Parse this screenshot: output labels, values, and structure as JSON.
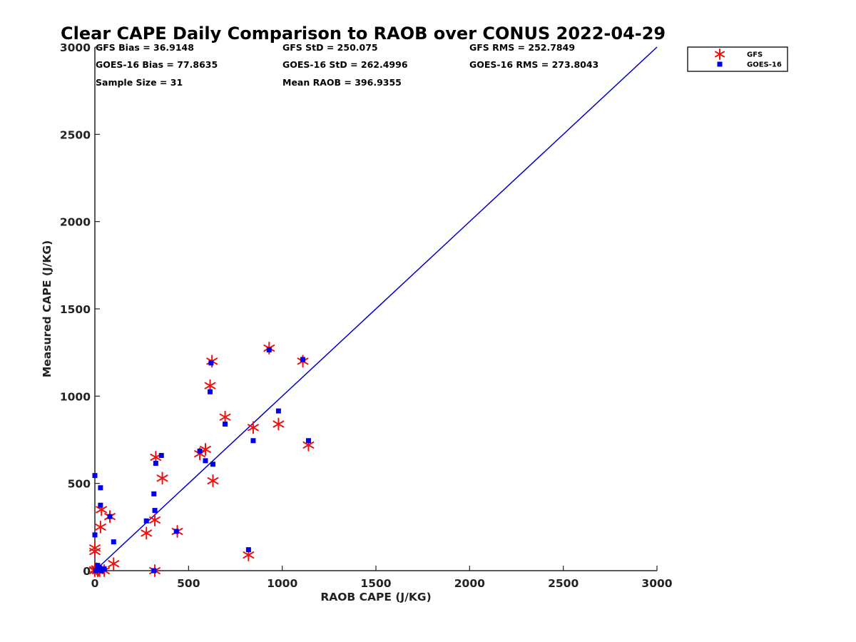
{
  "chart_data": {
    "type": "scatter",
    "title": "Clear CAPE Daily Comparison to RAOB over CONUS 2022-04-29",
    "xlabel": "RAOB CAPE (J/KG)",
    "ylabel": "Measured CAPE (J/KG)",
    "xlim": [
      0,
      3000
    ],
    "ylim": [
      0,
      3000
    ],
    "xticks": [
      "0",
      "500",
      "1000",
      "1500",
      "2000",
      "2500",
      "3000"
    ],
    "yticks": [
      "0",
      "500",
      "1000",
      "1500",
      "2000",
      "2500",
      "3000"
    ],
    "grid": false,
    "legend_position": "top-right",
    "reference_line": {
      "x": [
        0,
        3000
      ],
      "y": [
        0,
        3000
      ],
      "color": "#0000cc"
    },
    "stats": [
      [
        "GFS Bias = 36.9148",
        "GFS StD = 250.075",
        "GFS RMS = 252.7849"
      ],
      [
        "GOES-16 Bias = 77.8635",
        "GOES-16 StD = 262.4996",
        "GOES-16 RMS = 273.8043"
      ],
      [
        "Sample Size = 31",
        "Mean RAOB = 396.9355",
        ""
      ]
    ],
    "series": [
      {
        "name": "GFS",
        "marker": "asterisk",
        "color": "#ee1111",
        "x": [
          0,
          0,
          0,
          10,
          15,
          20,
          25,
          30,
          35,
          50,
          80,
          100,
          275,
          320,
          320,
          325,
          360,
          440,
          560,
          590,
          615,
          625,
          630,
          695,
          820,
          845,
          930,
          980,
          1110,
          1140,
          0
        ],
        "y": [
          130,
          110,
          0,
          10,
          0,
          5,
          0,
          250,
          350,
          0,
          310,
          40,
          215,
          0,
          290,
          650,
          530,
          225,
          670,
          695,
          1060,
          1200,
          515,
          880,
          90,
          820,
          1275,
          840,
          1200,
          720,
          5
        ]
      },
      {
        "name": "GOES-16",
        "marker": "square",
        "color": "#0000ee",
        "x": [
          0,
          0,
          15,
          20,
          25,
          30,
          30,
          35,
          50,
          80,
          100,
          275,
          315,
          315,
          320,
          325,
          355,
          435,
          560,
          590,
          615,
          620,
          630,
          695,
          820,
          845,
          930,
          980,
          1110,
          1140,
          5
        ],
        "y": [
          545,
          205,
          30,
          5,
          15,
          475,
          375,
          0,
          10,
          310,
          165,
          285,
          0,
          440,
          345,
          615,
          660,
          225,
          685,
          630,
          1025,
          1190,
          610,
          840,
          120,
          745,
          1265,
          915,
          1210,
          745,
          0
        ]
      }
    ]
  }
}
